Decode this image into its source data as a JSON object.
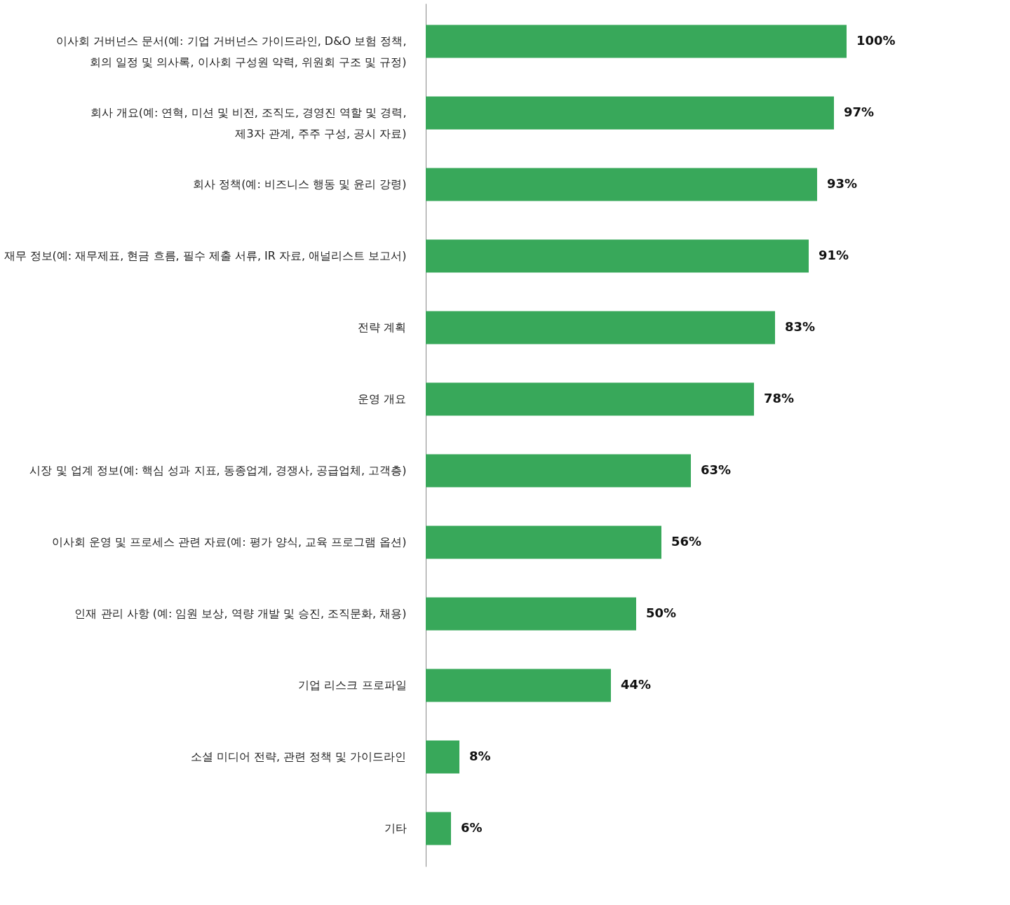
{
  "chart_data": {
    "type": "bar",
    "orientation": "horizontal",
    "categories": [
      "이사회 거버넌스 문서(예: 기업 거버넌스 가이드라인, D&O 보험 정책,\n회의 일정 및 의사록, 이사회 구성원 약력, 위원회 구조 및 규정)",
      "회사 개요(예: 연혁, 미션 및 비전, 조직도, 경영진 역할 및 경력,\n제3자 관계, 주주 구성, 공시 자료)",
      "회사 정책(예: 비즈니스 행동 및 윤리 강령)",
      "재무 정보(예: 재무제표, 현금 흐름, 필수 제출 서류, IR 자료, 애널리스트 보고서)",
      "전략 계획",
      "운영 개요",
      "시장 및 업계 정보(예: 핵심 성과 지표, 동종업계, 경쟁사, 공급업체, 고객층)",
      "이사회 운영 및 프로세스 관련 자료(예: 평가 양식, 교육 프로그램 옵션)",
      "인재 관리 사항 (예: 임원 보상, 역량 개발 및 승진, 조직문화, 채용)",
      "기업 리스크 프로파일",
      "소셜 미디어 전략, 관련 정책 및 가이드라인",
      "기타"
    ],
    "values": [
      100,
      97,
      93,
      91,
      83,
      78,
      63,
      56,
      50,
      44,
      8,
      6
    ],
    "value_labels": [
      "100%",
      "97%",
      "93%",
      "91%",
      "83%",
      "78%",
      "63%",
      "56%",
      "50%",
      "44%",
      "8%",
      "6%"
    ],
    "color": "#38a85a",
    "grid": false,
    "tick_labels": "y"
  }
}
